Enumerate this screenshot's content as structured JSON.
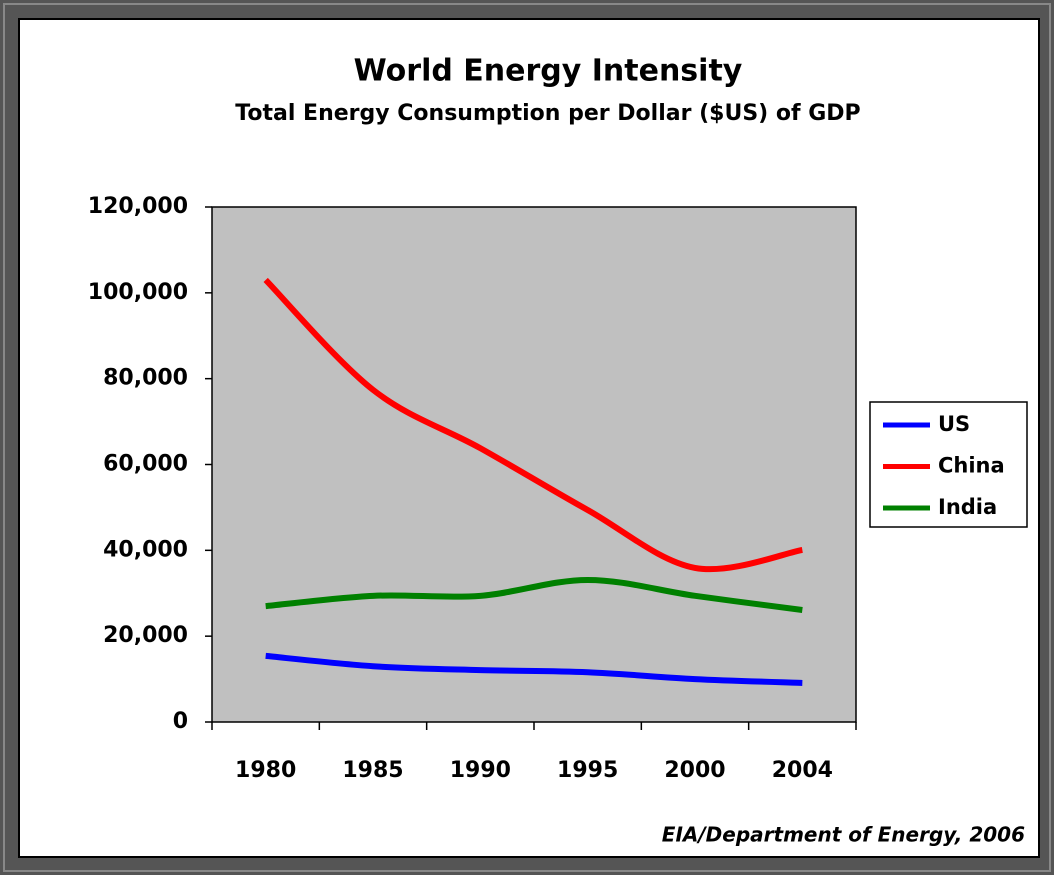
{
  "chart_data": {
    "type": "line",
    "title": "World Energy Intensity",
    "subtitle": "Total Energy Consumption per Dollar ($US) of GDP",
    "source": "EIA/Department of Energy, 2006",
    "categories": [
      "1980",
      "1985",
      "1990",
      "1995",
      "2000",
      "2004"
    ],
    "series": [
      {
        "name": "US",
        "color": "#0000ff",
        "values": [
          15400,
          13000,
          12100,
          11600,
          10000,
          9100
        ]
      },
      {
        "name": "China",
        "color": "#ff0000",
        "values": [
          103000,
          77400,
          63800,
          49400,
          35900,
          40100
        ]
      },
      {
        "name": "India",
        "color": "#008000",
        "values": [
          27000,
          29400,
          29400,
          33100,
          29400,
          26100
        ]
      }
    ],
    "ylim": [
      0,
      120000
    ],
    "yticks": [
      {
        "value": 0,
        "label": "0"
      },
      {
        "value": 20000,
        "label": "20,000"
      },
      {
        "value": 40000,
        "label": "40,000"
      },
      {
        "value": 60000,
        "label": "60,000"
      },
      {
        "value": 80000,
        "label": "80,000"
      },
      {
        "value": 100000,
        "label": "100,000"
      },
      {
        "value": 120000,
        "label": "120,000"
      }
    ],
    "legend": "right",
    "plot_background": "#c0c0c0"
  }
}
